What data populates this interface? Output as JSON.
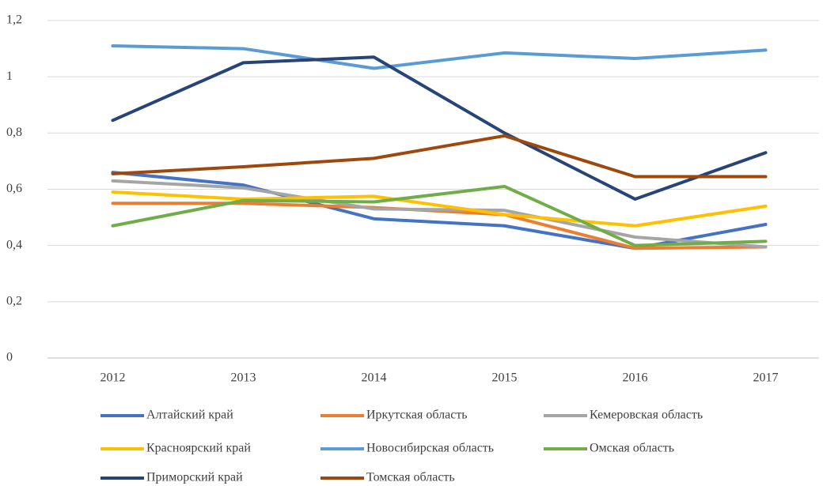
{
  "chart_data": {
    "type": "line",
    "categories": [
      "2012",
      "2013",
      "2014",
      "2015",
      "2016",
      "2017"
    ],
    "series": [
      {
        "name": "Алтайский край",
        "color": "#4472c4",
        "values": [
          0.66,
          0.615,
          0.495,
          0.47,
          0.39,
          0.475
        ]
      },
      {
        "name": "Иркутская область",
        "color": "#ed7d31",
        "values": [
          0.55,
          0.55,
          0.535,
          0.51,
          0.39,
          0.395
        ]
      },
      {
        "name": "Кемеровская область",
        "color": "#a5a5a5",
        "values": [
          0.63,
          0.605,
          0.53,
          0.525,
          0.43,
          0.395
        ]
      },
      {
        "name": "Красноярский край",
        "color": "#ffc000",
        "values": [
          0.59,
          0.565,
          0.575,
          0.51,
          0.47,
          0.54
        ]
      },
      {
        "name": "Новосибирская область",
        "color": "#5b9bd5",
        "values": [
          1.11,
          1.1,
          1.03,
          1.085,
          1.065,
          1.095
        ]
      },
      {
        "name": "Омская область",
        "color": "#70ad47",
        "values": [
          0.47,
          0.56,
          0.555,
          0.61,
          0.4,
          0.415
        ]
      },
      {
        "name": "Приморский край",
        "color": "#264478",
        "values": [
          0.845,
          1.05,
          1.07,
          0.8,
          0.565,
          0.73
        ]
      },
      {
        "name": "Томская область",
        "color": "#9e480e",
        "values": [
          0.655,
          0.68,
          0.71,
          0.79,
          0.645,
          0.645
        ]
      }
    ],
    "ylim": [
      0,
      1.2
    ],
    "yticks": [
      0,
      {
        "value": 0.2,
        "label": "0,2"
      },
      {
        "value": 0.4,
        "label": "0,4"
      },
      {
        "value": 0.6,
        "label": "0,6"
      },
      {
        "value": 0.8,
        "label": "0,8"
      },
      1,
      {
        "value": 1.2,
        "label": "1,2"
      }
    ],
    "grid": true,
    "legend": "bottom"
  }
}
